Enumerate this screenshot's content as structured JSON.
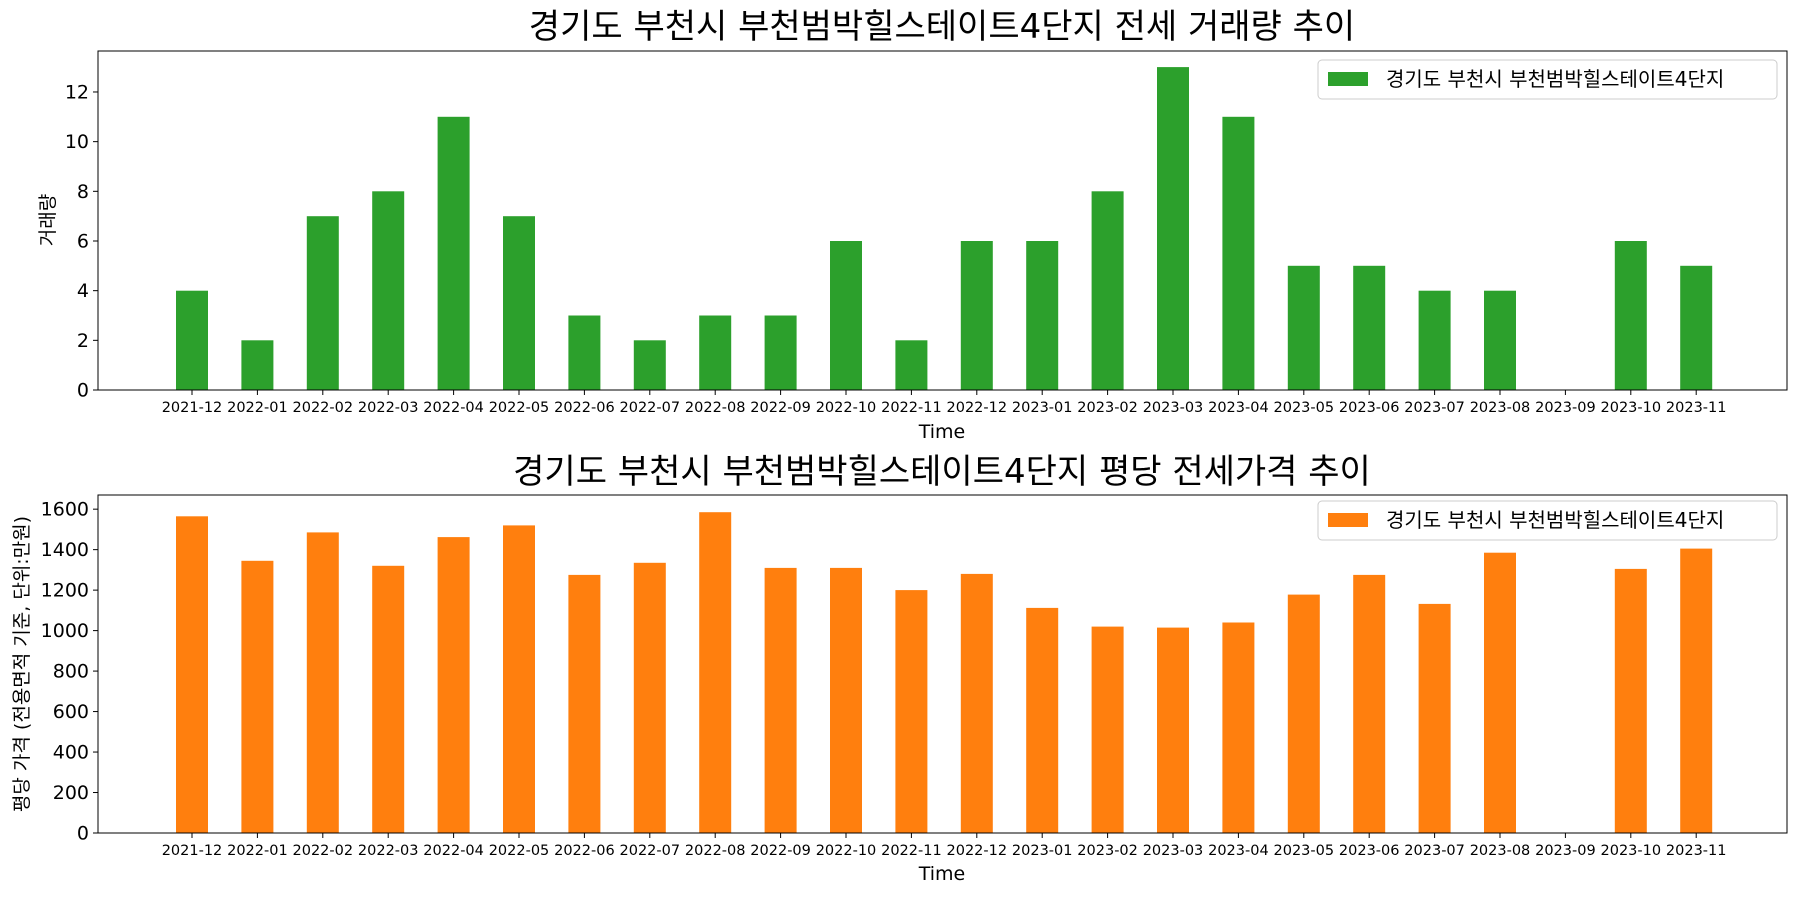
{
  "chart_data": [
    {
      "type": "bar",
      "title": "경기도 부천시 부천범박힐스테이트4단지 전세 거래량 추이",
      "xlabel": "Time",
      "ylabel": "거래량",
      "ylim": [
        0,
        13.65
      ],
      "yticks": [
        0,
        2,
        4,
        6,
        8,
        10,
        12
      ],
      "categories": [
        "2021-12",
        "2022-01",
        "2022-02",
        "2022-03",
        "2022-04",
        "2022-05",
        "2022-06",
        "2022-07",
        "2022-08",
        "2022-09",
        "2022-10",
        "2022-11",
        "2022-12",
        "2023-01",
        "2023-02",
        "2023-03",
        "2023-04",
        "2023-05",
        "2023-06",
        "2023-07",
        "2023-08",
        "2023-09",
        "2023-10",
        "2023-11"
      ],
      "series": [
        {
          "name": "경기도 부천시 부천범박힐스테이트4단지",
          "color": "#2ca02c",
          "values": [
            4,
            2,
            7,
            8,
            11,
            7,
            3,
            2,
            3,
            3,
            6,
            2,
            6,
            6,
            8,
            13,
            11,
            5,
            5,
            4,
            4,
            0,
            6,
            5
          ]
        }
      ],
      "legend": "top-right",
      "grid": false
    },
    {
      "type": "bar",
      "title": "경기도 부천시 부천범박힐스테이트4단지 평당 전세가격 추이",
      "xlabel": "Time",
      "ylabel": "평당 가격 (전용면적 기준, 단위:만원)",
      "ylim": [
        0,
        1670
      ],
      "yticks": [
        0,
        200,
        400,
        600,
        800,
        1000,
        1200,
        1400,
        1600
      ],
      "categories": [
        "2021-12",
        "2022-01",
        "2022-02",
        "2022-03",
        "2022-04",
        "2022-05",
        "2022-06",
        "2022-07",
        "2022-08",
        "2022-09",
        "2022-10",
        "2022-11",
        "2022-12",
        "2023-01",
        "2023-02",
        "2023-03",
        "2023-04",
        "2023-05",
        "2023-06",
        "2023-07",
        "2023-08",
        "2023-09",
        "2023-10",
        "2023-11"
      ],
      "series": [
        {
          "name": "경기도 부천시 부천범박힐스테이트4단지",
          "color": "#ff7f0e",
          "values": [
            1565,
            1345,
            1485,
            1320,
            1462,
            1520,
            1275,
            1335,
            1585,
            1310,
            1310,
            1200,
            1280,
            1112,
            1020,
            1015,
            1040,
            1178,
            1275,
            1132,
            1385,
            0,
            1305,
            1405
          ]
        }
      ],
      "legend": "top-right",
      "grid": false
    }
  ]
}
